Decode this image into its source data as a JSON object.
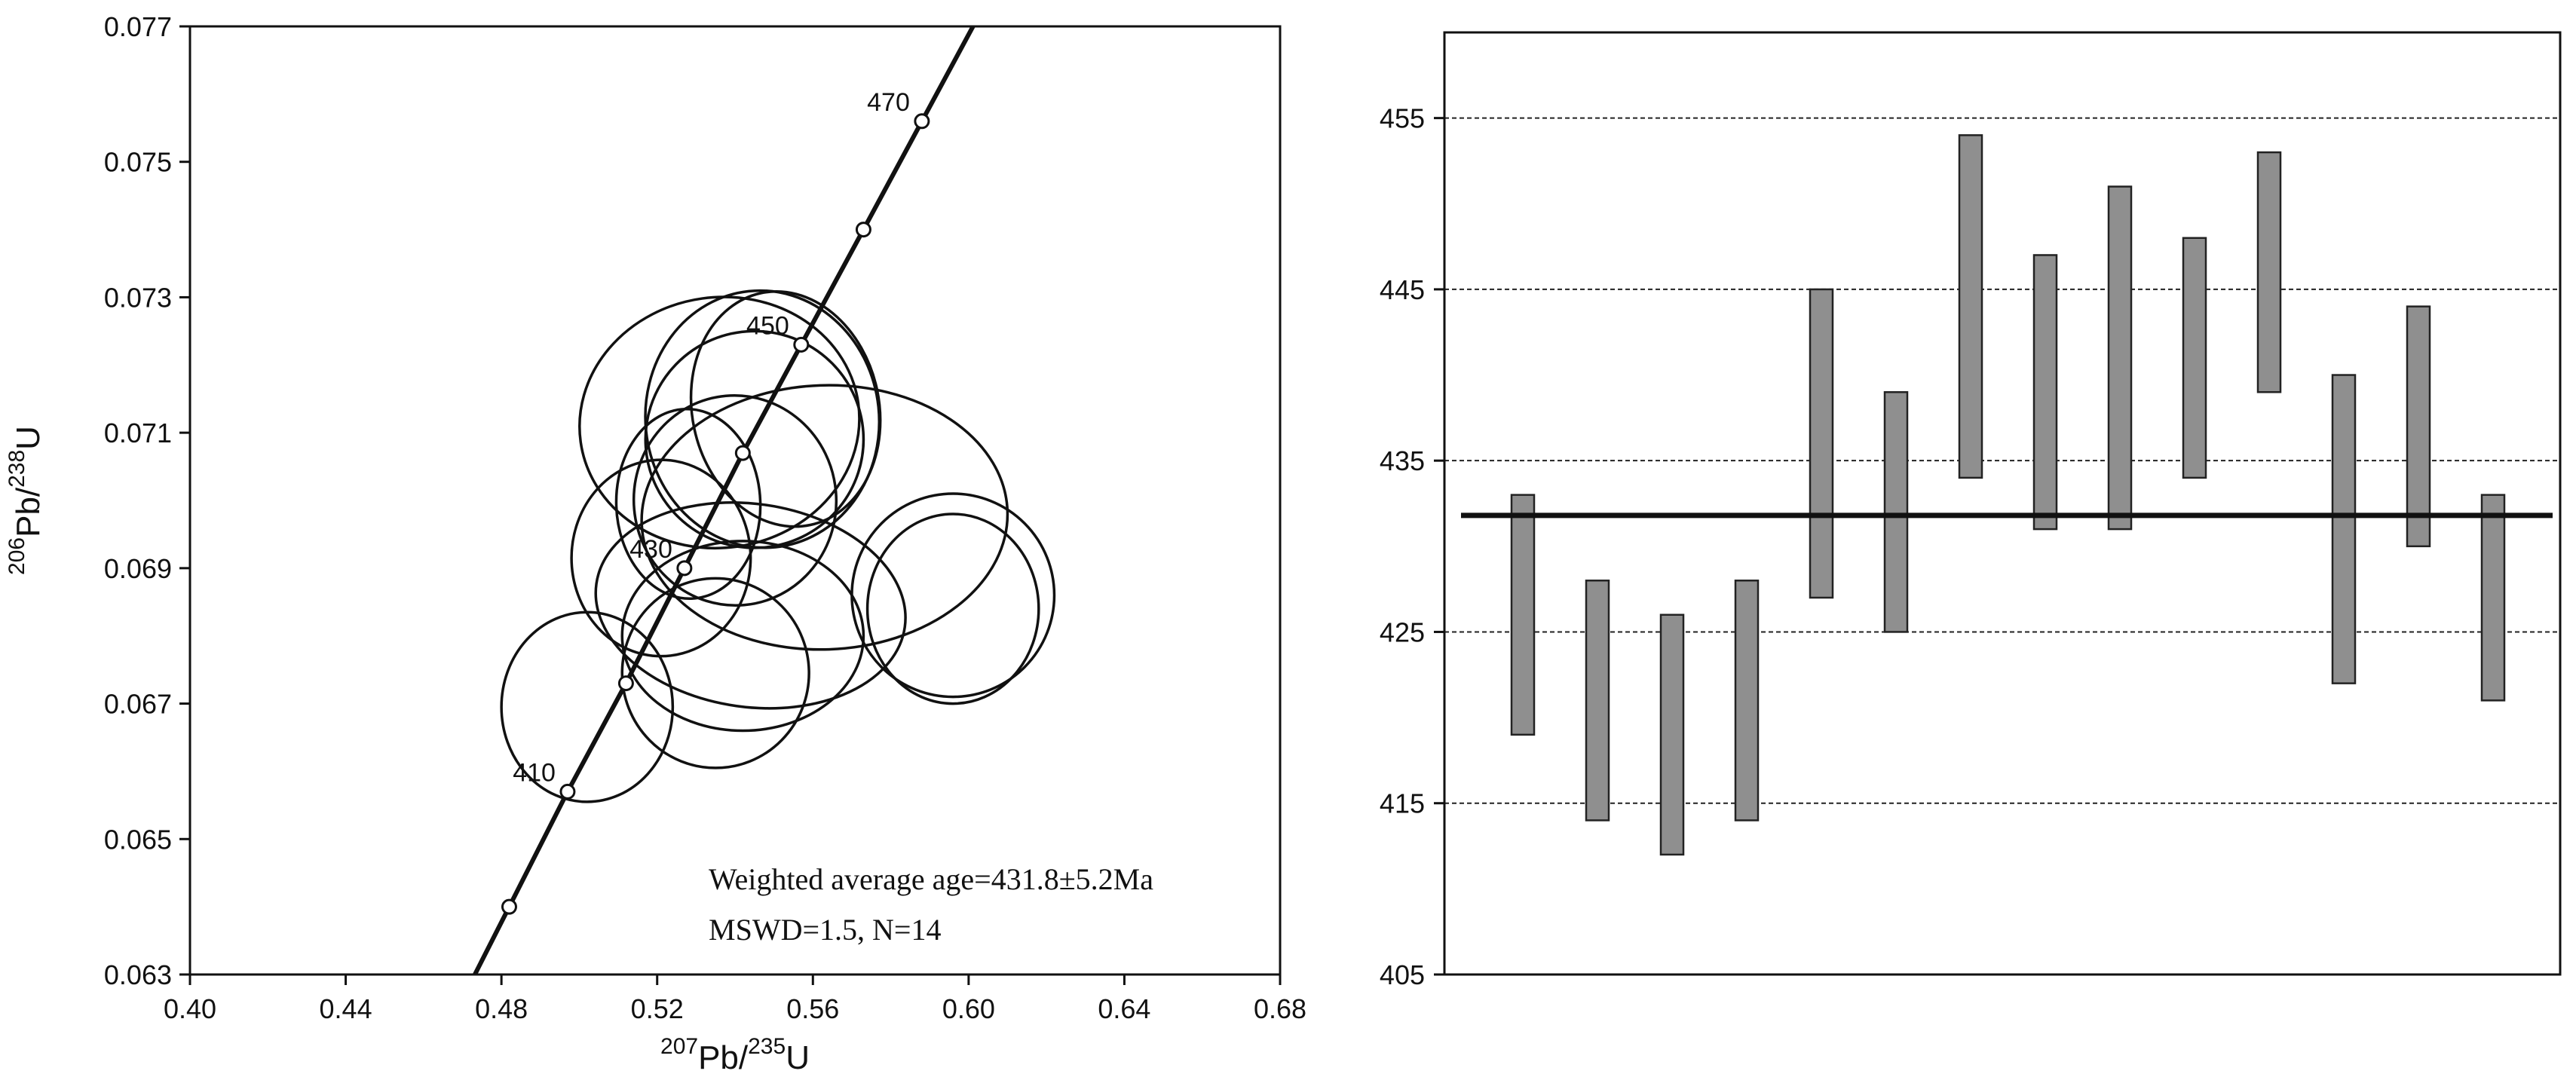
{
  "chart_data": [
    {
      "type": "scatter",
      "subtype": "U-Pb concordia diagram with error ellipses",
      "xlabel": {
        "sup": "207",
        "base": "Pb/",
        "sup2": "235",
        "base2": "U"
      },
      "ylabel": {
        "sup": "206",
        "base": "Pb/",
        "sup2": "238",
        "base2": "U"
      },
      "xlim": [
        0.4,
        0.68
      ],
      "ylim": [
        0.063,
        0.077
      ],
      "x_ticks": [
        "0.40",
        "0.44",
        "0.48",
        "0.52",
        "0.56",
        "0.60",
        "0.64",
        "0.68"
      ],
      "y_ticks": [
        "0.063",
        "0.065",
        "0.067",
        "0.069",
        "0.071",
        "0.073",
        "0.075",
        "0.077"
      ],
      "concordia_markers": [
        {
          "age": 400,
          "x": 0.482,
          "y": 0.064,
          "label": ""
        },
        {
          "age": 410,
          "x": 0.497,
          "y": 0.0657,
          "label": "410"
        },
        {
          "age": 420,
          "x": 0.512,
          "y": 0.0673,
          "label": ""
        },
        {
          "age": 430,
          "x": 0.527,
          "y": 0.069,
          "label": "430"
        },
        {
          "age": 440,
          "x": 0.542,
          "y": 0.0707,
          "label": ""
        },
        {
          "age": 450,
          "x": 0.557,
          "y": 0.0723,
          "label": "450"
        },
        {
          "age": 460,
          "x": 0.573,
          "y": 0.074,
          "label": ""
        },
        {
          "age": 470,
          "x": 0.588,
          "y": 0.0756,
          "label": "470"
        }
      ],
      "ellipses": [
        {
          "cx": 0.536,
          "cy": 0.07115,
          "rx": 0.036,
          "ry": 0.00185,
          "rotate": 8
        },
        {
          "cx": 0.547,
          "cy": 0.0712,
          "rx": 0.03,
          "ry": 0.0019,
          "rotate": 6
        },
        {
          "cx": 0.545,
          "cy": 0.0709,
          "rx": 0.028,
          "ry": 0.0016,
          "rotate": 4
        },
        {
          "cx": 0.553,
          "cy": 0.07135,
          "rx": 0.024,
          "ry": 0.00175,
          "rotate": 12
        },
        {
          "cx": 0.54,
          "cy": 0.07,
          "rx": 0.026,
          "ry": 0.00155,
          "rotate": 5
        },
        {
          "cx": 0.528,
          "cy": 0.06995,
          "rx": 0.0185,
          "ry": 0.0014,
          "rotate": 2
        },
        {
          "cx": 0.563,
          "cy": 0.06975,
          "rx": 0.047,
          "ry": 0.00195,
          "rotate": 2
        },
        {
          "cx": 0.521,
          "cy": 0.06915,
          "rx": 0.023,
          "ry": 0.00145,
          "rotate": 0
        },
        {
          "cx": 0.544,
          "cy": 0.06845,
          "rx": 0.04,
          "ry": 0.0015,
          "rotate": -8
        },
        {
          "cx": 0.542,
          "cy": 0.068,
          "rx": 0.031,
          "ry": 0.0014,
          "rotate": 0
        },
        {
          "cx": 0.596,
          "cy": 0.0686,
          "rx": 0.026,
          "ry": 0.0015,
          "rotate": 0
        },
        {
          "cx": 0.596,
          "cy": 0.0684,
          "rx": 0.022,
          "ry": 0.0014,
          "rotate": 0
        },
        {
          "cx": 0.535,
          "cy": 0.06745,
          "rx": 0.024,
          "ry": 0.0014,
          "rotate": 0
        },
        {
          "cx": 0.502,
          "cy": 0.06695,
          "rx": 0.022,
          "ry": 0.0014,
          "rotate": 0
        }
      ],
      "annotation_line1": "Weighted average age=431.8±5.2Ma",
      "annotation_line2": "MSWD=1.5, N=14"
    },
    {
      "type": "bar",
      "subtype": "weighted mean age error bars",
      "ylim": [
        405,
        460
      ],
      "y_ticks": [
        "405",
        "415",
        "425",
        "435",
        "445",
        "455"
      ],
      "gridlines": [
        415,
        425,
        435,
        445,
        455
      ],
      "mean_line": 431.8,
      "bars": [
        {
          "low": 419,
          "high": 433
        },
        {
          "low": 414,
          "high": 428
        },
        {
          "low": 412,
          "high": 426
        },
        {
          "low": 414,
          "high": 428
        },
        {
          "low": 427,
          "high": 445
        },
        {
          "low": 425,
          "high": 439
        },
        {
          "low": 434,
          "high": 454
        },
        {
          "low": 431,
          "high": 447
        },
        {
          "low": 431,
          "high": 451
        },
        {
          "low": 434,
          "high": 448
        },
        {
          "low": 439,
          "high": 453
        },
        {
          "low": 422,
          "high": 440
        },
        {
          "low": 430,
          "high": 444
        },
        {
          "low": 421,
          "high": 433
        }
      ],
      "colors": {
        "bar_fill": "#8f8f8f",
        "bar_stroke": "#222222",
        "line": "#111111",
        "grid": "#222222"
      }
    }
  ]
}
